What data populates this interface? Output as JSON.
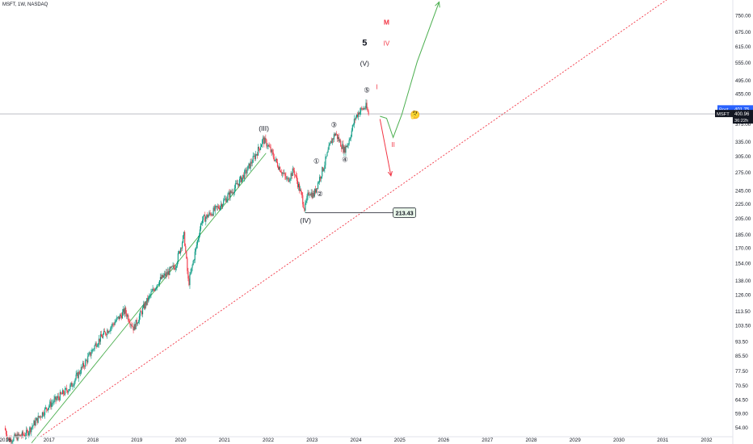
{
  "symbol_label": "MSFT, 1W, NASDAQ",
  "colors": {
    "up": "#089981",
    "down": "#f23645",
    "impulse": "#4caf50",
    "bear_projection": "#f23645",
    "trendline": "#f23645",
    "axis_text": "#131722",
    "price_line": "#9598a1",
    "post_tag": "#2962ff"
  },
  "chart_data": {
    "type": "candlestick",
    "title": "",
    "scale": "log",
    "ylim": [
      51,
      830
    ],
    "xlim": [
      2015.88,
      2032.6
    ],
    "x_ticks": [
      "2016",
      "2017",
      "2018",
      "2019",
      "2020",
      "2021",
      "2022",
      "2023",
      "2024",
      "2025",
      "2026",
      "2027",
      "2028",
      "2029",
      "2030",
      "2031",
      "2032"
    ],
    "y_ticks": [
      "825.00",
      "750.00",
      "675.00",
      "615.00",
      "555.00",
      "495.00",
      "455.00",
      "415.00",
      "375.00",
      "335.00",
      "305.00",
      "275.00",
      "245.00",
      "225.00",
      "205.00",
      "185.00",
      "170.00",
      "154.00",
      "138.00",
      "126.00",
      "113.50",
      "103.50",
      "93.50",
      "85.50",
      "77.50",
      "70.50",
      "64.50",
      "59.00",
      "54.00"
    ],
    "price_anchors": [
      [
        2016.0,
        54
      ],
      [
        2016.1,
        50
      ],
      [
        2016.5,
        52
      ],
      [
        2016.8,
        58
      ],
      [
        2017.0,
        62
      ],
      [
        2017.5,
        70
      ],
      [
        2017.9,
        84
      ],
      [
        2018.1,
        93
      ],
      [
        2018.3,
        99
      ],
      [
        2018.75,
        114
      ],
      [
        2018.95,
        102
      ],
      [
        2019.2,
        118
      ],
      [
        2019.5,
        137
      ],
      [
        2019.9,
        152
      ],
      [
        2020.1,
        185
      ],
      [
        2020.2,
        135
      ],
      [
        2020.5,
        203
      ],
      [
        2020.7,
        212
      ],
      [
        2020.9,
        222
      ],
      [
        2021.2,
        245
      ],
      [
        2021.5,
        275
      ],
      [
        2021.8,
        320
      ],
      [
        2021.9,
        340
      ],
      [
        2022.0,
        330
      ],
      [
        2022.2,
        295
      ],
      [
        2022.45,
        262
      ],
      [
        2022.6,
        280
      ],
      [
        2022.8,
        233
      ],
      [
        2022.85,
        218
      ],
      [
        2022.95,
        245
      ],
      [
        2023.05,
        238
      ],
      [
        2023.3,
        290
      ],
      [
        2023.45,
        335
      ],
      [
        2023.55,
        355
      ],
      [
        2023.75,
        318
      ],
      [
        2023.85,
        335
      ],
      [
        2024.0,
        390
      ],
      [
        2024.1,
        408
      ],
      [
        2024.25,
        420
      ],
      [
        2024.3,
        401
      ]
    ],
    "last_price": 400.96,
    "post_price": "401.75",
    "post_label": "Post",
    "price_label": "400.96",
    "countdown": "36:22h",
    "symbol_tag": "MSFT",
    "annotations": [
      {
        "text": "(III)",
        "x": 2021.9,
        "y": 360
      },
      {
        "text": "(IV)",
        "x": 2022.85,
        "y": 200
      },
      {
        "text": "(V)",
        "x": 2024.2,
        "y": 545
      },
      {
        "text": "5",
        "x": 2024.2,
        "y": 620
      },
      {
        "text": "③",
        "x": 2023.5,
        "y": 368
      },
      {
        "text": "④",
        "x": 2023.75,
        "y": 295
      },
      {
        "text": "①",
        "x": 2023.1,
        "y": 292
      },
      {
        "text": "②",
        "x": 2023.18,
        "y": 237
      },
      {
        "text": "⑤",
        "x": 2024.25,
        "y": 460
      }
    ],
    "red_annotations": [
      {
        "text": "M",
        "x": 2024.7,
        "y": 710
      },
      {
        "text": "IV",
        "x": 2024.7,
        "y": 620
      },
      {
        "text": "I",
        "x": 2024.48,
        "y": 470
      },
      {
        "text": "II",
        "x": 2024.85,
        "y": 325
      }
    ],
    "support_label": "213.43",
    "support_price": 213.43,
    "support_from": 2022.85,
    "support_to": 2024.85,
    "green_impulse_path": [
      [
        2024.55,
        395
      ],
      [
        2024.7,
        390
      ],
      [
        2024.85,
        345
      ],
      [
        2025.05,
        400
      ],
      [
        2025.4,
        560
      ],
      [
        2025.9,
        820
      ]
    ],
    "red_projection_path": [
      [
        2024.55,
        388
      ],
      [
        2024.8,
        270
      ]
    ],
    "green_trendline": [
      [
        2016.6,
        49
      ],
      [
        2021.95,
        312
      ]
    ],
    "red_trendline": [
      [
        2016.8,
        51
      ],
      [
        2031.5,
        900
      ]
    ],
    "emoji": "🤔"
  }
}
